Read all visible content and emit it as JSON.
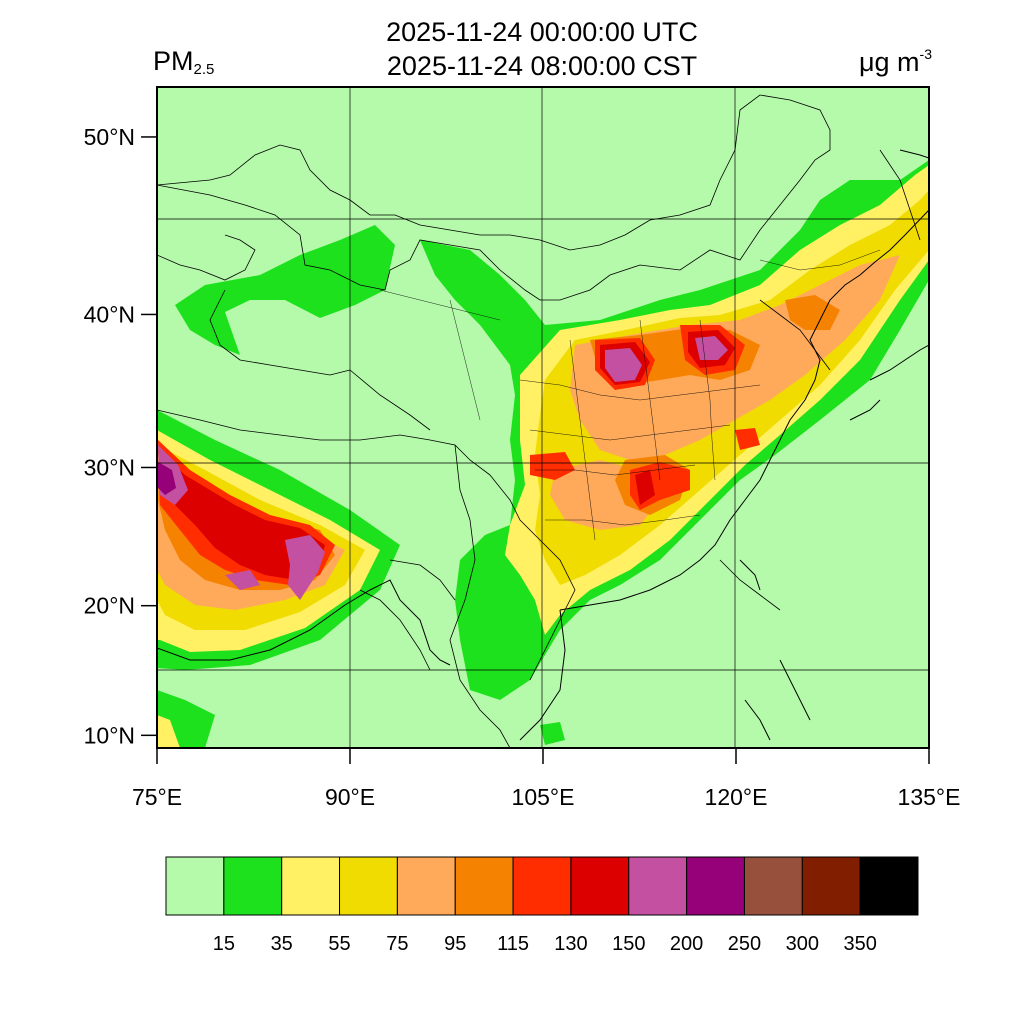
{
  "title": {
    "line1": "2025-11-24 00:00:00 UTC",
    "line2": "2025-11-24 08:00:00 CST"
  },
  "variable": {
    "name": "PM",
    "subscript": "2.5"
  },
  "units": {
    "base": "μg m",
    "exponent": "-3"
  },
  "map": {
    "lon_range": [
      75,
      135
    ],
    "lat_range": [
      9,
      52.5
    ],
    "lon_ticks": [
      {
        "value": 75,
        "label": "75°E"
      },
      {
        "value": 90,
        "label": "90°E"
      },
      {
        "value": 105,
        "label": "105°E"
      },
      {
        "value": 120,
        "label": "120°E"
      },
      {
        "value": 135,
        "label": "135°E"
      }
    ],
    "lat_ticks": [
      {
        "value": 10,
        "label": "10°N"
      },
      {
        "value": 20,
        "label": "20°N"
      },
      {
        "value": 30,
        "label": "30°N"
      },
      {
        "value": 40,
        "label": "40°N"
      },
      {
        "value": 50,
        "label": "50°N"
      }
    ],
    "background_color": "#b4faaa",
    "graticule": "on"
  },
  "colorbar": {
    "levels": [
      "15",
      "35",
      "55",
      "75",
      "95",
      "115",
      "130",
      "150",
      "200",
      "250",
      "300",
      "350"
    ],
    "colors": [
      "#b4faaa",
      "#1ee11e",
      "#fff064",
      "#f0dc00",
      "#ffaa5a",
      "#f58200",
      "#ff2d00",
      "#dc0000",
      "#c350a0",
      "#960078",
      "#96503c",
      "#821e00",
      "#000000"
    ]
  }
}
